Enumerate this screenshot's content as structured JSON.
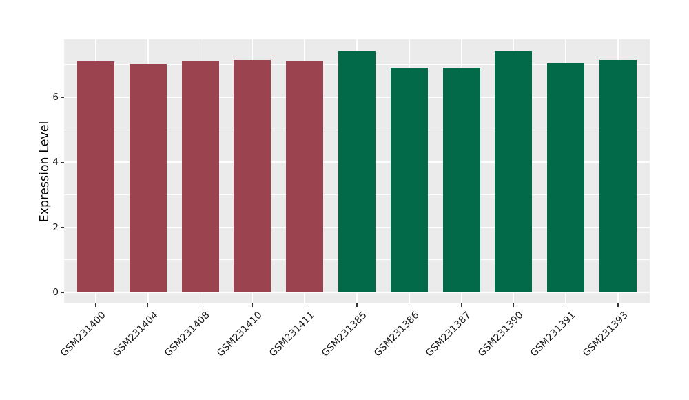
{
  "chart_data": {
    "type": "bar",
    "title": "",
    "xlabel": "",
    "ylabel": "Expression Level",
    "categories": [
      "GSM231400",
      "GSM231404",
      "GSM231408",
      "GSM231410",
      "GSM231411",
      "GSM231385",
      "GSM231386",
      "GSM231387",
      "GSM231390",
      "GSM231391",
      "GSM231393"
    ],
    "values": [
      7.11,
      7.02,
      7.12,
      7.15,
      7.13,
      7.42,
      6.92,
      6.92,
      7.42,
      7.04,
      7.14
    ],
    "bar_colors": [
      "#9B4450",
      "#9B4450",
      "#9B4450",
      "#9B4450",
      "#9B4450",
      "#026949",
      "#026949",
      "#026949",
      "#026949",
      "#026949",
      "#026949"
    ],
    "group_colors": {
      "left_group_maroon": "#9B4450",
      "right_group_green": "#026949"
    },
    "y_ticks": [
      0,
      2,
      4,
      6
    ],
    "y_minor_gridlines": [
      1,
      3,
      5,
      7
    ],
    "ylim": [
      -0.34,
      7.78
    ],
    "x_tick_rotation_deg": 45,
    "grid": "on",
    "legend": "none",
    "panel_background": "#EBEBEB",
    "gridline_color": "#FFFFFF",
    "tick_color": "#333333",
    "axis_text_color": "#1A1A1A"
  }
}
